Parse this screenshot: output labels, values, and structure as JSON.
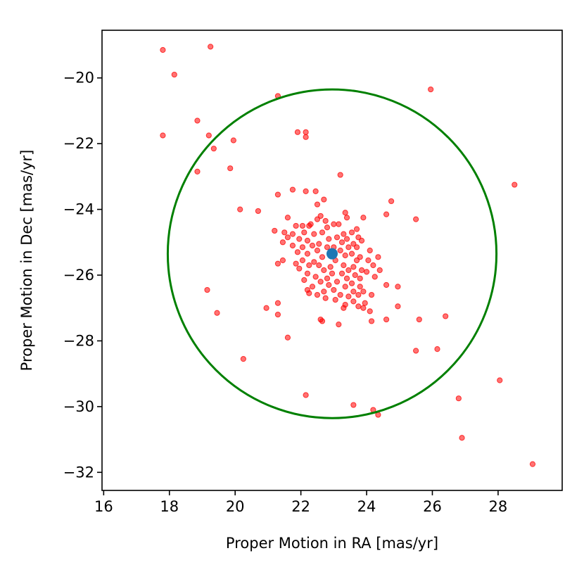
{
  "chart_data": {
    "type": "scatter",
    "title": "",
    "xlabel": "Proper Motion in RA [mas/yr]",
    "ylabel": "Proper Motion in Dec [mas/yr]",
    "xlim": [
      15.95,
      29.95
    ],
    "ylim": [
      -32.55,
      -18.55
    ],
    "xticks": [
      16,
      18,
      20,
      22,
      24,
      26,
      28
    ],
    "yticks": [
      -20,
      -22,
      -24,
      -26,
      -28,
      -30,
      -32
    ],
    "xtick_labels": [
      "16",
      "18",
      "20",
      "22",
      "24",
      "26",
      "28"
    ],
    "ytick_labels": [
      "−20",
      "−22",
      "−24",
      "−26",
      "−28",
      "−30",
      "−32"
    ],
    "grid": false,
    "colors": {
      "points": "#ff0000",
      "center": "#1f77b4",
      "circle": "#008000"
    },
    "center": {
      "x": 22.95,
      "y": -25.35
    },
    "circle": {
      "cx": 22.95,
      "cy": -25.35,
      "radius": 5.0
    },
    "points": [
      [
        17.8,
        -19.15
      ],
      [
        19.25,
        -19.05
      ],
      [
        18.15,
        -19.9
      ],
      [
        25.95,
        -20.35
      ],
      [
        21.3,
        -20.55
      ],
      [
        17.8,
        -21.75
      ],
      [
        18.85,
        -21.3
      ],
      [
        19.2,
        -21.75
      ],
      [
        19.35,
        -22.15
      ],
      [
        19.95,
        -21.9
      ],
      [
        21.9,
        -21.65
      ],
      [
        22.15,
        -21.65
      ],
      [
        22.15,
        -21.8
      ],
      [
        19.85,
        -22.75
      ],
      [
        18.85,
        -22.85
      ],
      [
        23.2,
        -22.95
      ],
      [
        28.5,
        -23.25
      ],
      [
        21.75,
        -23.4
      ],
      [
        22.15,
        -23.45
      ],
      [
        22.45,
        -23.45
      ],
      [
        21.3,
        -23.55
      ],
      [
        22.7,
        -23.7
      ],
      [
        24.75,
        -23.75
      ],
      [
        22.5,
        -23.85
      ],
      [
        20.15,
        -24.0
      ],
      [
        20.7,
        -24.05
      ],
      [
        23.35,
        -24.1
      ],
      [
        24.6,
        -24.15
      ],
      [
        22.6,
        -24.2
      ],
      [
        23.4,
        -24.25
      ],
      [
        21.6,
        -24.25
      ],
      [
        23.9,
        -24.25
      ],
      [
        25.5,
        -24.3
      ],
      [
        22.5,
        -24.3
      ],
      [
        22.75,
        -24.35
      ],
      [
        22.3,
        -24.45
      ],
      [
        21.85,
        -24.5
      ],
      [
        22.05,
        -24.5
      ],
      [
        22.25,
        -24.5
      ],
      [
        23.0,
        -24.45
      ],
      [
        23.15,
        -24.45
      ],
      [
        22.8,
        -24.55
      ],
      [
        21.2,
        -24.65
      ],
      [
        23.7,
        -24.6
      ],
      [
        21.5,
        -24.7
      ],
      [
        21.75,
        -24.75
      ],
      [
        22.1,
        -24.7
      ],
      [
        22.4,
        -24.75
      ],
      [
        22.65,
        -24.7
      ],
      [
        23.3,
        -24.75
      ],
      [
        23.55,
        -24.7
      ],
      [
        21.6,
        -24.85
      ],
      [
        21.95,
        -24.9
      ],
      [
        22.2,
        -24.95
      ],
      [
        22.85,
        -24.9
      ],
      [
        23.1,
        -24.85
      ],
      [
        23.4,
        -24.9
      ],
      [
        23.75,
        -24.85
      ],
      [
        21.45,
        -25.0
      ],
      [
        22.55,
        -25.05
      ],
      [
        23.25,
        -25.0
      ],
      [
        23.6,
        -25.05
      ],
      [
        23.85,
        -24.95
      ],
      [
        21.75,
        -25.1
      ],
      [
        22.05,
        -25.15
      ],
      [
        22.35,
        -25.1
      ],
      [
        22.8,
        -25.15
      ],
      [
        23.0,
        -25.15
      ],
      [
        23.45,
        -25.15
      ],
      [
        23.7,
        -25.15
      ],
      [
        22.5,
        -25.25
      ],
      [
        23.2,
        -25.25
      ],
      [
        21.9,
        -25.3
      ],
      [
        22.2,
        -25.35
      ],
      [
        23.55,
        -25.35
      ],
      [
        24.1,
        -25.25
      ],
      [
        22.65,
        -25.45
      ],
      [
        23.35,
        -25.4
      ],
      [
        23.8,
        -25.45
      ],
      [
        24.35,
        -25.45
      ],
      [
        21.45,
        -25.55
      ],
      [
        22.05,
        -25.55
      ],
      [
        22.4,
        -25.6
      ],
      [
        23.05,
        -25.55
      ],
      [
        23.7,
        -25.55
      ],
      [
        24.05,
        -25.55
      ],
      [
        21.3,
        -25.65
      ],
      [
        21.85,
        -25.65
      ],
      [
        22.25,
        -25.7
      ],
      [
        22.55,
        -25.7
      ],
      [
        22.9,
        -25.75
      ],
      [
        23.3,
        -25.7
      ],
      [
        23.6,
        -25.75
      ],
      [
        24.2,
        -25.7
      ],
      [
        21.95,
        -25.8
      ],
      [
        22.7,
        -25.85
      ],
      [
        23.45,
        -25.85
      ],
      [
        23.85,
        -25.85
      ],
      [
        24.4,
        -25.85
      ],
      [
        22.2,
        -25.95
      ],
      [
        22.95,
        -25.95
      ],
      [
        23.25,
        -25.95
      ],
      [
        23.65,
        -26.0
      ],
      [
        24.0,
        -25.9
      ],
      [
        22.45,
        -26.05
      ],
      [
        22.8,
        -26.1
      ],
      [
        23.4,
        -26.1
      ],
      [
        23.8,
        -26.1
      ],
      [
        24.25,
        -26.05
      ],
      [
        22.1,
        -26.15
      ],
      [
        22.6,
        -26.2
      ],
      [
        23.1,
        -26.2
      ],
      [
        23.55,
        -26.25
      ],
      [
        22.85,
        -26.3
      ],
      [
        22.35,
        -26.35
      ],
      [
        23.35,
        -26.35
      ],
      [
        23.8,
        -26.35
      ],
      [
        24.6,
        -26.3
      ],
      [
        24.95,
        -26.35
      ],
      [
        22.2,
        -26.45
      ],
      [
        22.7,
        -26.5
      ],
      [
        23.0,
        -26.45
      ],
      [
        23.6,
        -26.5
      ],
      [
        23.9,
        -26.5
      ],
      [
        22.5,
        -26.6
      ],
      [
        23.2,
        -26.6
      ],
      [
        23.45,
        -26.65
      ],
      [
        23.75,
        -26.6
      ],
      [
        24.15,
        -26.6
      ],
      [
        22.75,
        -26.7
      ],
      [
        23.05,
        -26.75
      ],
      [
        22.25,
        -26.55
      ],
      [
        23.6,
        -26.8
      ],
      [
        23.95,
        -26.85
      ],
      [
        23.35,
        -26.9
      ],
      [
        23.75,
        -26.95
      ],
      [
        24.95,
        -26.95
      ],
      [
        23.3,
        -27.0
      ],
      [
        23.9,
        -27.0
      ],
      [
        24.1,
        -27.1
      ],
      [
        20.95,
        -27.0
      ],
      [
        21.3,
        -26.85
      ],
      [
        19.15,
        -26.45
      ],
      [
        19.45,
        -27.15
      ],
      [
        21.3,
        -27.2
      ],
      [
        24.6,
        -27.35
      ],
      [
        25.6,
        -27.35
      ],
      [
        26.4,
        -27.25
      ],
      [
        22.6,
        -27.35
      ],
      [
        22.65,
        -27.4
      ],
      [
        23.15,
        -27.5
      ],
      [
        24.15,
        -27.4
      ],
      [
        21.6,
        -27.9
      ],
      [
        25.5,
        -28.3
      ],
      [
        26.15,
        -28.25
      ],
      [
        20.25,
        -28.55
      ],
      [
        28.05,
        -29.2
      ],
      [
        22.15,
        -29.65
      ],
      [
        26.8,
        -29.75
      ],
      [
        23.6,
        -29.95
      ],
      [
        24.2,
        -30.1
      ],
      [
        24.35,
        -30.25
      ],
      [
        26.9,
        -30.95
      ],
      [
        29.05,
        -31.75
      ]
    ]
  }
}
